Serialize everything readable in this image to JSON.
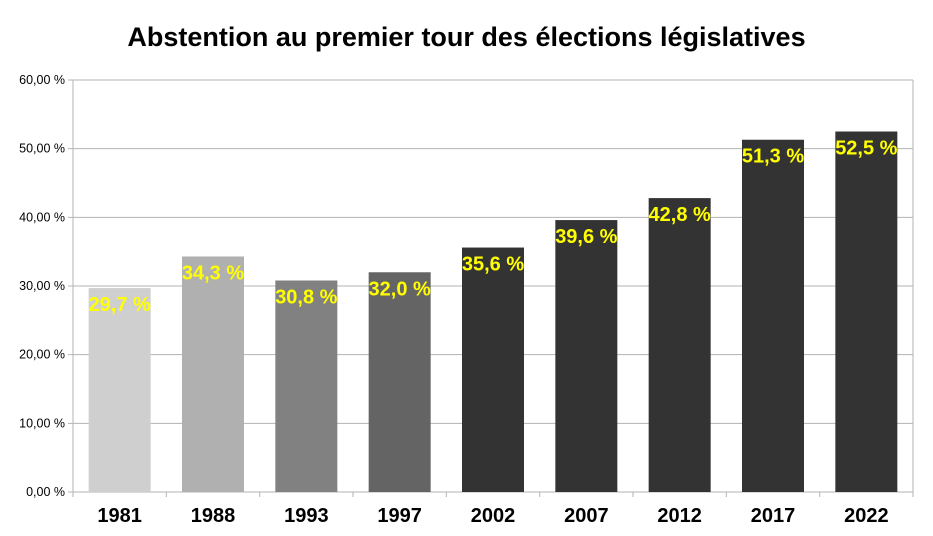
{
  "chart_data": {
    "type": "bar",
    "title": "Abstention au premier tour des élections législatives",
    "categories": [
      "1981",
      "1988",
      "1993",
      "1997",
      "2002",
      "2007",
      "2012",
      "2017",
      "2022"
    ],
    "values": [
      29.7,
      34.3,
      30.8,
      32.0,
      35.6,
      39.6,
      42.8,
      51.3,
      52.5
    ],
    "data_labels": [
      "29,7 %",
      "34,3 %",
      "30,8 %",
      "32,0 %",
      "35,6 %",
      "39,6 %",
      "42,8 %",
      "51,3 %",
      "52,5 %"
    ],
    "bar_colors": [
      "#cfcfcf",
      "#b0b0b0",
      "#818181",
      "#646464",
      "#333333",
      "#333333",
      "#333333",
      "#333333",
      "#333333"
    ],
    "label_color": "#ffff00",
    "grid_color": "#b3b3b3",
    "ylim": [
      0,
      60
    ],
    "yticks": [
      0,
      10,
      20,
      30,
      40,
      50,
      60
    ],
    "ytick_labels": [
      "0,00 %",
      "10,00 %",
      "20,00 %",
      "30,00 %",
      "40,00 %",
      "50,00 %",
      "60,00 %"
    ],
    "xlabel": "",
    "ylabel": "",
    "grid": true,
    "legend": "none"
  }
}
